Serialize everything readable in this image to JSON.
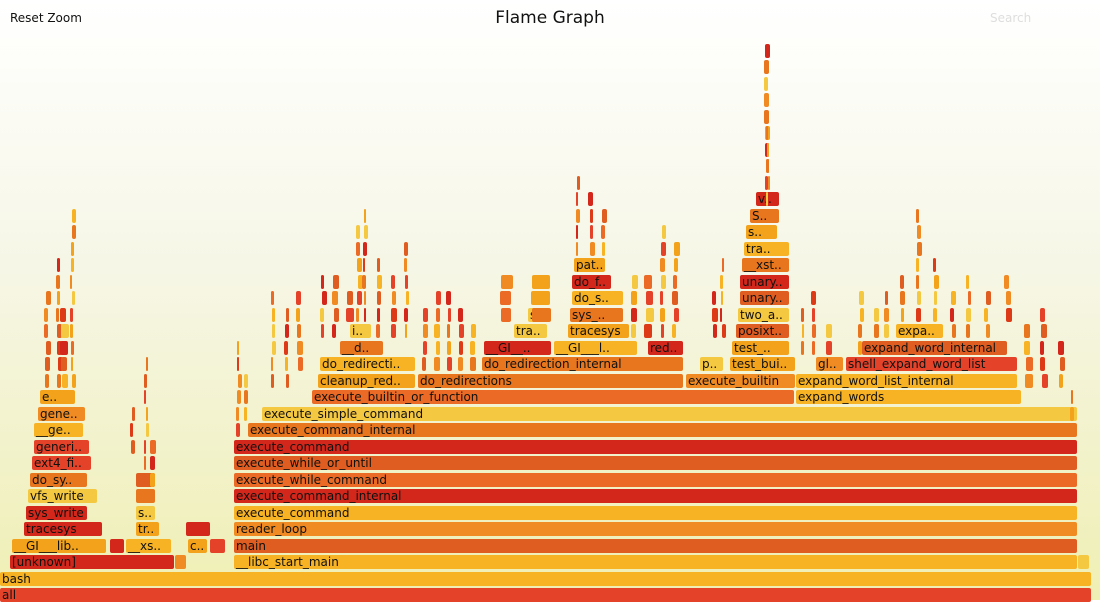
{
  "toolbar": {
    "reset_zoom": "Reset Zoom",
    "title": "Flame Graph",
    "search": "Search"
  },
  "colors": [
    "#e4432a",
    "#e8761f",
    "#f2a21b",
    "#d4271b",
    "#f08b24",
    "#e05d21",
    "#f5c842",
    "#eb6a25",
    "#f7b324",
    "#dd3a18"
  ],
  "frames": [
    {
      "row": 0,
      "x0": 0,
      "x1": 1092,
      "label": "all",
      "c": 0
    },
    {
      "row": 1,
      "x0": 0,
      "x1": 1092,
      "label": "bash",
      "c": 8
    },
    {
      "row": 2,
      "x0": 10,
      "x1": 175,
      "label": "[unknown]",
      "c": 3
    },
    {
      "row": 2,
      "x0": 175,
      "x1": 187,
      "label": "",
      "c": 4
    },
    {
      "row": 2,
      "x0": 234,
      "x1": 1078,
      "label": "__libc_start_main",
      "c": 8
    },
    {
      "row": 2,
      "x0": 1078,
      "x1": 1090,
      "label": "",
      "c": 6
    },
    {
      "row": 3,
      "x0": 12,
      "x1": 107,
      "label": "__GI___lib..",
      "c": 2
    },
    {
      "row": 3,
      "x0": 110,
      "x1": 125,
      "label": "",
      "c": 3
    },
    {
      "row": 3,
      "x0": 126,
      "x1": 172,
      "label": "__xs..",
      "c": 8
    },
    {
      "row": 3,
      "x0": 188,
      "x1": 208,
      "label": "c..",
      "c": 2
    },
    {
      "row": 3,
      "x0": 210,
      "x1": 226,
      "label": "",
      "c": 0
    },
    {
      "row": 3,
      "x0": 234,
      "x1": 1078,
      "label": "main",
      "c": 5
    },
    {
      "row": 4,
      "x0": 24,
      "x1": 103,
      "label": "tracesys",
      "c": 3
    },
    {
      "row": 4,
      "x0": 136,
      "x1": 160,
      "label": "tr..",
      "c": 2
    },
    {
      "row": 4,
      "x0": 186,
      "x1": 211,
      "label": "",
      "c": 3
    },
    {
      "row": 4,
      "x0": 234,
      "x1": 1078,
      "label": "reader_loop",
      "c": 4
    },
    {
      "row": 5,
      "x0": 26,
      "x1": 88,
      "label": "sys_write",
      "c": 3
    },
    {
      "row": 5,
      "x0": 136,
      "x1": 156,
      "label": "s..",
      "c": 6
    },
    {
      "row": 5,
      "x0": 234,
      "x1": 1078,
      "label": "execute_command",
      "c": 8
    },
    {
      "row": 6,
      "x0": 28,
      "x1": 98,
      "label": "vfs_write",
      "c": 6
    },
    {
      "row": 6,
      "x0": 136,
      "x1": 156,
      "label": "",
      "c": 1
    },
    {
      "row": 6,
      "x0": 234,
      "x1": 1078,
      "label": "execute_command_internal",
      "c": 3
    },
    {
      "row": 7,
      "x0": 30,
      "x1": 88,
      "label": "do_sy..",
      "c": 1
    },
    {
      "row": 7,
      "x0": 136,
      "x1": 156,
      "label": "",
      "c": 5
    },
    {
      "row": 7,
      "x0": 234,
      "x1": 1078,
      "label": "execute_while_command",
      "c": 7
    },
    {
      "row": 8,
      "x0": 32,
      "x1": 92,
      "label": "ext4_fi..",
      "c": 0
    },
    {
      "row": 8,
      "x0": 234,
      "x1": 1078,
      "label": "execute_while_or_until",
      "c": 5
    },
    {
      "row": 9,
      "x0": 34,
      "x1": 90,
      "label": "generi..",
      "c": 0
    },
    {
      "row": 9,
      "x0": 234,
      "x1": 1078,
      "label": "execute_command",
      "c": 3
    },
    {
      "row": 10,
      "x0": 34,
      "x1": 84,
      "label": "__ge..",
      "c": 8
    },
    {
      "row": 10,
      "x0": 248,
      "x1": 1078,
      "label": "execute_command_internal",
      "c": 1
    },
    {
      "row": 11,
      "x0": 38,
      "x1": 86,
      "label": "gene..",
      "c": 4
    },
    {
      "row": 11,
      "x0": 262,
      "x1": 1078,
      "label": "execute_simple_command",
      "c": 6
    },
    {
      "row": 12,
      "x0": 40,
      "x1": 76,
      "label": "e..",
      "c": 2
    },
    {
      "row": 12,
      "x0": 312,
      "x1": 795,
      "label": "execute_builtin_or_function",
      "c": 7
    },
    {
      "row": 12,
      "x0": 796,
      "x1": 1022,
      "label": "expand_words",
      "c": 8
    },
    {
      "row": 13,
      "x0": 318,
      "x1": 416,
      "label": "cleanup_red..",
      "c": 2
    },
    {
      "row": 13,
      "x0": 418,
      "x1": 684,
      "label": "do_redirections",
      "c": 1
    },
    {
      "row": 13,
      "x0": 686,
      "x1": 796,
      "label": "execute_builtin",
      "c": 4
    },
    {
      "row": 13,
      "x0": 796,
      "x1": 1018,
      "label": "expand_word_list_internal",
      "c": 8
    },
    {
      "row": 14,
      "x0": 320,
      "x1": 416,
      "label": "do_redirecti..",
      "c": 8
    },
    {
      "row": 14,
      "x0": 482,
      "x1": 684,
      "label": "do_redirection_internal",
      "c": 1
    },
    {
      "row": 14,
      "x0": 700,
      "x1": 724,
      "label": "p..",
      "c": 6
    },
    {
      "row": 14,
      "x0": 730,
      "x1": 796,
      "label": "test_bui..",
      "c": 2
    },
    {
      "row": 14,
      "x0": 816,
      "x1": 844,
      "label": "gl..",
      "c": 4
    },
    {
      "row": 14,
      "x0": 846,
      "x1": 1018,
      "label": "shell_expand_word_list",
      "c": 0
    },
    {
      "row": 15,
      "x0": 340,
      "x1": 384,
      "label": "__d..",
      "c": 1
    },
    {
      "row": 15,
      "x0": 484,
      "x1": 552,
      "label": "__GI__..",
      "c": 3
    },
    {
      "row": 15,
      "x0": 554,
      "x1": 638,
      "label": "__GI___l..",
      "c": 8
    },
    {
      "row": 15,
      "x0": 648,
      "x1": 684,
      "label": "red..",
      "c": 3
    },
    {
      "row": 15,
      "x0": 732,
      "x1": 790,
      "label": "test_..",
      "c": 2
    },
    {
      "row": 15,
      "x0": 862,
      "x1": 1008,
      "label": "expand_word_internal",
      "c": 5
    },
    {
      "row": 16,
      "x0": 350,
      "x1": 372,
      "label": "i..",
      "c": 6
    },
    {
      "row": 16,
      "x0": 514,
      "x1": 548,
      "label": "tra..",
      "c": 6
    },
    {
      "row": 16,
      "x0": 568,
      "x1": 630,
      "label": "tracesys",
      "c": 2
    },
    {
      "row": 16,
      "x0": 736,
      "x1": 790,
      "label": "posixt..",
      "c": 5
    },
    {
      "row": 16,
      "x0": 896,
      "x1": 944,
      "label": "expa..",
      "c": 8
    },
    {
      "row": 17,
      "x0": 528,
      "x1": 550,
      "label": "s..",
      "c": 6
    },
    {
      "row": 17,
      "x0": 570,
      "x1": 624,
      "label": "sys_..",
      "c": 1
    },
    {
      "row": 17,
      "x0": 738,
      "x1": 790,
      "label": "two_a..",
      "c": 6
    },
    {
      "row": 18,
      "x0": 572,
      "x1": 624,
      "label": "do_s..",
      "c": 8
    },
    {
      "row": 18,
      "x0": 740,
      "x1": 790,
      "label": "unary..",
      "c": 5
    },
    {
      "row": 19,
      "x0": 572,
      "x1": 612,
      "label": "do_f..",
      "c": 3
    },
    {
      "row": 19,
      "x0": 740,
      "x1": 790,
      "label": "unary..",
      "c": 3
    },
    {
      "row": 20,
      "x0": 574,
      "x1": 606,
      "label": "pat..",
      "c": 2
    },
    {
      "row": 20,
      "x0": 742,
      "x1": 790,
      "label": "__xst..",
      "c": 1
    },
    {
      "row": 21,
      "x0": 744,
      "x1": 790,
      "label": "tra..",
      "c": 8
    },
    {
      "row": 22,
      "x0": 746,
      "x1": 778,
      "label": "s..",
      "c": 2
    },
    {
      "row": 23,
      "x0": 750,
      "x1": 780,
      "label": "S..",
      "c": 1
    },
    {
      "row": 24,
      "x0": 756,
      "x1": 780,
      "label": "v..",
      "c": 3
    }
  ]
}
